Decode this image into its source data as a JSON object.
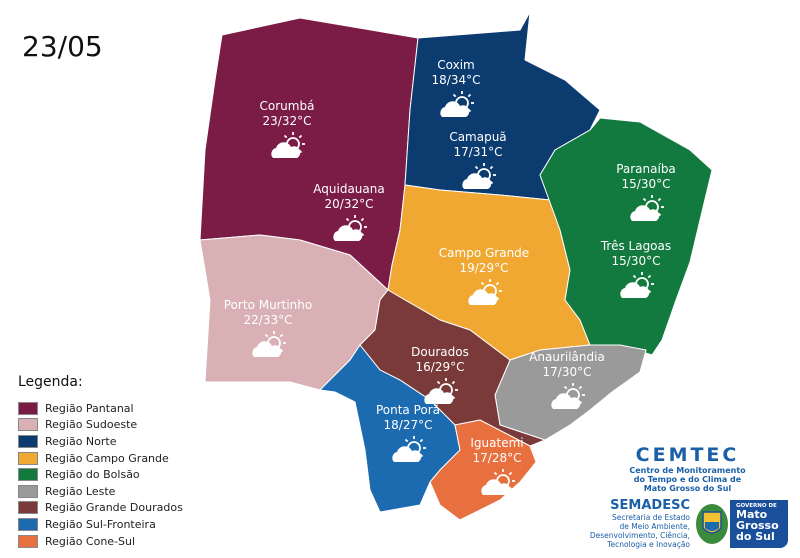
{
  "date": "23/05",
  "regions": [
    {
      "id": "pantanal",
      "color": "#7b1c47",
      "cities": [
        {
          "name": "Corumbá",
          "temp": "23/32°C",
          "icon": "sun-cloud"
        },
        {
          "name": "Aquidauana",
          "temp": "20/32°C",
          "icon": "sun-cloud"
        }
      ]
    },
    {
      "id": "sudoeste",
      "color": "#d9b1b5",
      "cities": [
        {
          "name": "Porto Murtinho",
          "temp": "22/33°C",
          "icon": "sun-cloud"
        }
      ]
    },
    {
      "id": "norte",
      "color": "#0c3b70",
      "cities": [
        {
          "name": "Coxim",
          "temp": "18/34°C",
          "icon": "sun-cloud"
        },
        {
          "name": "Camapuã",
          "temp": "17/31°C",
          "icon": "sun-cloud"
        }
      ]
    },
    {
      "id": "campo-grande",
      "color": "#f0a832",
      "cities": [
        {
          "name": "Campo Grande",
          "temp": "19/29°C",
          "icon": "sun-cloud"
        }
      ]
    },
    {
      "id": "bolsao",
      "color": "#137a3f",
      "cities": [
        {
          "name": "Paranaíba",
          "temp": "15/30°C",
          "icon": "sun-cloud"
        },
        {
          "name": "Três Lagoas",
          "temp": "15/30°C",
          "icon": "sun-cloud"
        }
      ]
    },
    {
      "id": "leste",
      "color": "#9a9a9a",
      "cities": [
        {
          "name": "Anaurilândia",
          "temp": "17/30°C",
          "icon": "sun-cloud"
        }
      ]
    },
    {
      "id": "grande-dourados",
      "color": "#7a3a3a",
      "cities": [
        {
          "name": "Dourados",
          "temp": "16/29°C",
          "icon": "sun-cloud"
        }
      ]
    },
    {
      "id": "sul-fronteira",
      "color": "#1c6bb0",
      "cities": [
        {
          "name": "Ponta Porã",
          "temp": "18/27°C",
          "icon": "sun-cloud"
        }
      ]
    },
    {
      "id": "cone-sul",
      "color": "#e8703f",
      "cities": [
        {
          "name": "Iguatemi",
          "temp": "17/28°C",
          "icon": "sun-cloud"
        }
      ]
    }
  ],
  "legend": {
    "title": "Legenda:",
    "items": [
      {
        "label": "Região Pantanal",
        "color": "#7b1c47"
      },
      {
        "label": "Região Sudoeste",
        "color": "#d9b1b5"
      },
      {
        "label": "Região Norte",
        "color": "#0c3b70"
      },
      {
        "label": "Região Campo Grande",
        "color": "#f0a832"
      },
      {
        "label": "Região do Bolsão",
        "color": "#137a3f"
      },
      {
        "label": "Região Leste",
        "color": "#9a9a9a"
      },
      {
        "label": "Região Grande Dourados",
        "color": "#7a3a3a"
      },
      {
        "label": "Região Sul-Fronteira",
        "color": "#1c6bb0"
      },
      {
        "label": "Região Cone-Sul",
        "color": "#e8703f"
      }
    ]
  },
  "logos": {
    "cemtec": {
      "name": "CEMTEC",
      "lines": [
        "Centro de Monitoramento",
        "do Tempo e do Clima de",
        "Mato Grosso do Sul"
      ]
    },
    "semadesc": {
      "name": "SEMADESC",
      "lines": [
        "Secretaria de Estado",
        "de Meio Ambiente,",
        "Desenvolvimento, Ciência,",
        "Tecnologia e Inovação"
      ]
    },
    "governo": {
      "small": "GOVERNO DE",
      "lines": [
        "Mato",
        "Grosso",
        "do Sul"
      ]
    }
  }
}
